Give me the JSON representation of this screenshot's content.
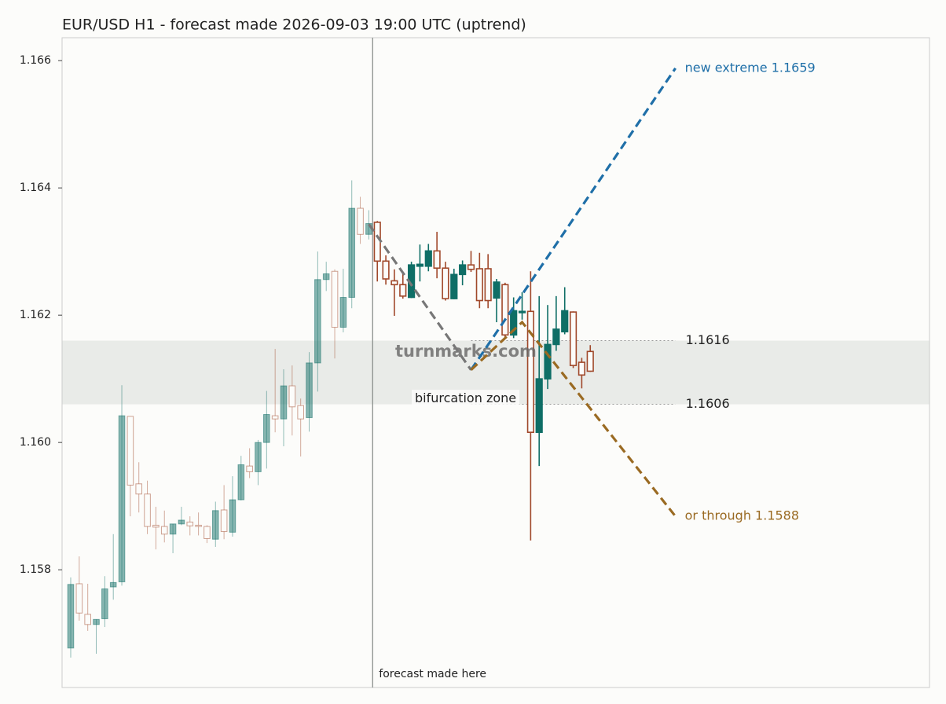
{
  "chart_data": {
    "type": "candlestick",
    "title": "EUR/USD H1 - forecast made 2026-09-03 19:00 UTC (uptrend)",
    "up_color": "#0f6e66",
    "down_color": "#a0482a",
    "open": [
      1.15677,
      1.15778,
      1.1573,
      1.15714,
      1.15723,
      1.15773,
      1.15781,
      1.16041,
      1.15935,
      1.15919,
      1.1587,
      1.15868,
      1.15856,
      1.15872,
      1.15875,
      1.1587,
      1.15868,
      1.15848,
      1.15894,
      1.15859,
      1.1591,
      1.15963,
      1.15954,
      1.16,
      1.16042,
      1.16037,
      1.16089,
      1.16058,
      1.16039,
      1.16125,
      1.16256,
      1.16269,
      1.16181,
      1.16228,
      1.16368,
      1.16327,
      1.16346,
      1.16285,
      1.16254,
      1.16248,
      1.16228,
      1.16277,
      1.16277,
      1.16301,
      1.16274,
      1.16226,
      1.16264,
      1.16279,
      1.16273,
      1.16273,
      1.16227,
      1.16248,
      1.16169,
      1.16204,
      1.16206,
      1.16016,
      1.161,
      1.16154,
      1.16174,
      1.16205,
      1.16126,
      1.16143
    ],
    "high": [
      1.15788,
      1.15821,
      1.15778,
      1.15722,
      1.1579,
      1.15856,
      1.1609,
      1.16041,
      1.15969,
      1.1594,
      1.15899,
      1.15893,
      1.15872,
      1.15899,
      1.15884,
      1.1589,
      1.1587,
      1.15907,
      1.15933,
      1.15947,
      1.15979,
      1.15991,
      1.16004,
      1.16081,
      1.16147,
      1.16115,
      1.16121,
      1.16069,
      1.16142,
      1.163,
      1.16284,
      1.16272,
      1.16273,
      1.16412,
      1.16386,
      1.16365,
      1.16348,
      1.16294,
      1.16272,
      1.16265,
      1.16284,
      1.16311,
      1.16312,
      1.16331,
      1.16284,
      1.16273,
      1.16286,
      1.16301,
      1.16298,
      1.16296,
      1.16257,
      1.16251,
      1.16228,
      1.16236,
      1.16269,
      1.1623,
      1.16216,
      1.1623,
      1.16244,
      1.16206,
      1.16133,
      1.16153
    ],
    "low": [
      1.15662,
      1.1572,
      1.15704,
      1.15668,
      1.1571,
      1.15753,
      1.15775,
      1.15884,
      1.1589,
      1.15856,
      1.15832,
      1.15843,
      1.15826,
      1.1587,
      1.15854,
      1.15854,
      1.15842,
      1.15836,
      1.15848,
      1.15852,
      1.15909,
      1.15944,
      1.15933,
      1.15959,
      1.16016,
      1.15994,
      1.16011,
      1.15978,
      1.16017,
      1.1608,
      1.16238,
      1.16132,
      1.16173,
      1.16211,
      1.16312,
      1.16319,
      1.16253,
      1.16248,
      1.16199,
      1.16226,
      1.16227,
      1.16253,
      1.16269,
      1.16258,
      1.16223,
      1.16225,
      1.16247,
      1.16268,
      1.16211,
      1.16211,
      1.16189,
      1.16164,
      1.16164,
      1.16193,
      1.15846,
      1.15963,
      1.16084,
      1.16144,
      1.1617,
      1.16117,
      1.16085,
      1.16111
    ],
    "close": [
      1.15777,
      1.15732,
      1.15714,
      1.15722,
      1.1577,
      1.1578,
      1.16042,
      1.15933,
      1.15919,
      1.15868,
      1.15867,
      1.15856,
      1.15872,
      1.15878,
      1.15869,
      1.15868,
      1.15849,
      1.15893,
      1.1586,
      1.1591,
      1.15965,
      1.15954,
      1.16,
      1.16044,
      1.16037,
      1.16089,
      1.16056,
      1.16037,
      1.16125,
      1.16256,
      1.16265,
      1.16181,
      1.16228,
      1.16368,
      1.16327,
      1.16344,
      1.16285,
      1.16257,
      1.16248,
      1.1623,
      1.16279,
      1.1628,
      1.16301,
      1.16274,
      1.16226,
      1.16264,
      1.16279,
      1.16272,
      1.16223,
      1.16223,
      1.16252,
      1.16169,
      1.16207,
      1.16206,
      1.16016,
      1.161,
      1.16154,
      1.16178,
      1.16207,
      1.16121,
      1.16106,
      1.16112
    ],
    "xlim": [
      -1.015,
      100.83
    ],
    "ylim": [
      1.15615,
      1.16636
    ],
    "yticks": [
      1.158,
      {
        "value": 1.16,
        "label": "1.160"
      },
      1.162,
      1.164,
      1.166
    ],
    "forecast_x": 35.45,
    "forecast_label": "forecast made here",
    "zone": {
      "label": "bifurcation zone",
      "high": 1.1616,
      "low": 1.1606,
      "color": "#e9ebe8"
    },
    "watermark": "turnmarks.com",
    "forecasts": [
      {
        "color": "#777777",
        "x": [
          35,
          47
        ],
        "values": [
          1.16343,
          1.16114
        ]
      },
      {
        "label": "new extreme 1.1659",
        "color": "#1f6fa8",
        "x": [
          47,
          71
        ],
        "values": [
          1.16114,
          1.16588
        ]
      },
      {
        "label": "or through 1.1588",
        "color": "#9a6a22",
        "x": [
          47,
          53,
          71
        ],
        "values": [
          1.16114,
          1.16189,
          1.15884
        ]
      }
    ]
  }
}
